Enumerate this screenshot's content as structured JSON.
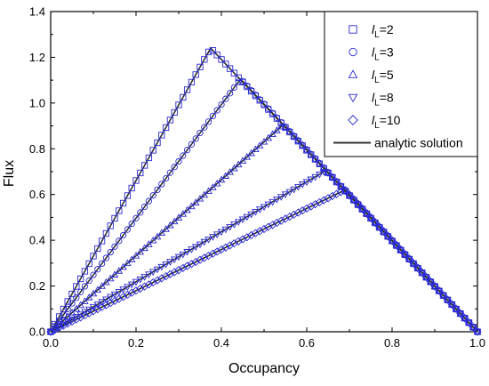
{
  "colors": {
    "marker": "#2a2ad0",
    "analytic_line": "#333333",
    "axis": "#000000"
  },
  "chart_data": {
    "type": "scatter",
    "title": "",
    "xlabel": "Occupancy",
    "ylabel": "Flux",
    "xlim": [
      0.0,
      1.0
    ],
    "ylim": [
      0.0,
      1.4
    ],
    "xticks": [
      "0.0",
      "0.2",
      "0.4",
      "0.6",
      "0.8",
      "1.0"
    ],
    "yticks": [
      "0.0",
      "0.2",
      "0.4",
      "0.6",
      "0.8",
      "1.0",
      "1.2",
      "1.4"
    ],
    "grid": false,
    "legend_position": "top-right",
    "series": [
      {
        "legend_prefix": "l",
        "legend_sub": "L",
        "legend_suffix": "=2",
        "marker": "square",
        "peak": [
          0.375,
          1.24
        ]
      },
      {
        "legend_prefix": "l",
        "legend_sub": "L",
        "legend_suffix": "=3",
        "marker": "circle",
        "peak": [
          0.445,
          1.105
        ]
      },
      {
        "legend_prefix": "l",
        "legend_sub": "L",
        "legend_suffix": "=5",
        "marker": "triangle-up",
        "peak": [
          0.545,
          0.905
        ]
      },
      {
        "legend_prefix": "l",
        "legend_sub": "L",
        "legend_suffix": "=8",
        "marker": "triangle-down",
        "peak": [
          0.645,
          0.705
        ]
      },
      {
        "legend_prefix": "l",
        "legend_sub": "L",
        "legend_suffix": "=10",
        "marker": "diamond",
        "peak": [
          0.69,
          0.62
        ]
      }
    ],
    "analytic": {
      "name": "analytic solution",
      "description": "piecewise linear: rises from (0,0) to each peak, then falls linearly to (1,0)"
    }
  }
}
